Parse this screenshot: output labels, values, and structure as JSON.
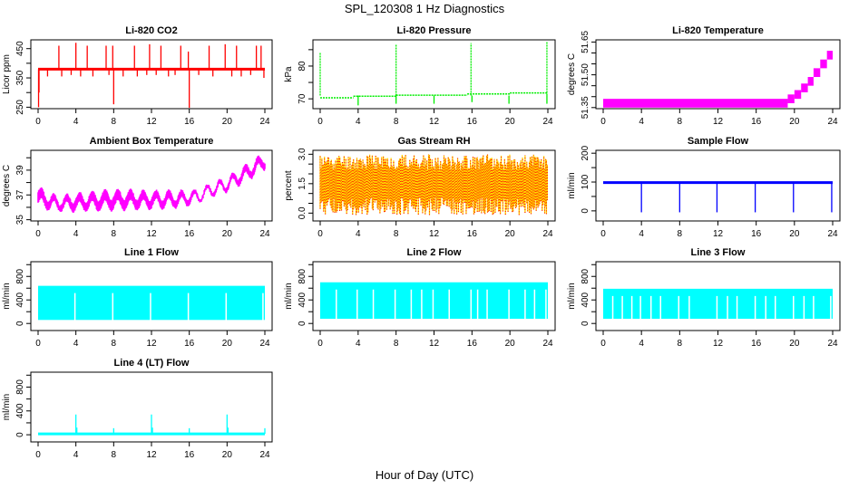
{
  "title": "SPL_120308  1 Hz Diagnostics",
  "xlabel": "Hour of Day (UTC)",
  "chart_data": [
    {
      "id": "co2",
      "type": "line",
      "title": "Li-820 CO2",
      "ylabel": "Licor ppm",
      "color": "#ff0000",
      "xlim": [
        0,
        24
      ],
      "ylim": [
        245,
        480
      ],
      "xticks": [
        0,
        4,
        8,
        12,
        16,
        20,
        24
      ],
      "yticks": [
        250,
        300,
        350,
        400,
        450
      ],
      "ytick_labels": [
        "250",
        "",
        "350",
        "",
        "450"
      ],
      "baseline": [
        [
          0,
          380
        ],
        [
          24,
          380
        ]
      ],
      "spikes": [
        [
          0.05,
          250
        ],
        [
          0.1,
          300
        ],
        [
          2.2,
          460
        ],
        [
          4.0,
          470
        ],
        [
          5.2,
          460
        ],
        [
          7.2,
          460
        ],
        [
          7.9,
          460
        ],
        [
          8.0,
          260
        ],
        [
          10.2,
          460
        ],
        [
          11.8,
          465
        ],
        [
          13.0,
          460
        ],
        [
          15.1,
          460
        ],
        [
          15.9,
          440
        ],
        [
          16.0,
          248
        ],
        [
          18.1,
          460
        ],
        [
          19.8,
          465
        ],
        [
          21.0,
          460
        ],
        [
          23.1,
          460
        ],
        [
          23.6,
          460
        ],
        [
          23.9,
          350
        ]
      ],
      "dips": [
        [
          1.0,
          355
        ],
        [
          2.5,
          355
        ],
        [
          3.5,
          360
        ],
        [
          4.5,
          355
        ],
        [
          5.8,
          355
        ],
        [
          7.5,
          360
        ],
        [
          9.0,
          355
        ],
        [
          10.5,
          355
        ],
        [
          11.5,
          360
        ],
        [
          12.5,
          360
        ],
        [
          13.8,
          355
        ],
        [
          14.5,
          360
        ],
        [
          17.0,
          360
        ],
        [
          18.5,
          355
        ],
        [
          20.5,
          355
        ],
        [
          21.5,
          355
        ],
        [
          22.5,
          360
        ]
      ]
    },
    {
      "id": "pressure",
      "type": "line",
      "title": "Li-820 Pressure",
      "ylabel": "kPa",
      "color": "#00ee00",
      "xlim": [
        0,
        24
      ],
      "ylim": [
        67,
        88
      ],
      "xticks": [
        0,
        4,
        8,
        12,
        16,
        20,
        24
      ],
      "yticks": [
        70,
        75,
        80,
        85
      ],
      "ytick_labels": [
        "70",
        "",
        "80",
        ""
      ],
      "segments": [
        [
          [
            0,
            70.3
          ],
          [
            3.5,
            70.3
          ]
        ],
        [
          [
            3.5,
            70.8
          ],
          [
            8,
            70.8
          ]
        ],
        [
          [
            8,
            71.1
          ],
          [
            15.5,
            71.1
          ]
        ],
        [
          [
            15.5,
            71.5
          ],
          [
            20,
            71.5
          ]
        ],
        [
          [
            20,
            71.8
          ],
          [
            24,
            71.8
          ]
        ]
      ],
      "spikes": [
        [
          0.0,
          84
        ],
        [
          8.0,
          86.5
        ],
        [
          15.9,
          87
        ],
        [
          23.9,
          87.5
        ]
      ],
      "dips": [
        [
          4.0,
          68
        ],
        [
          8.0,
          68.5
        ],
        [
          12.0,
          68.5
        ],
        [
          16.0,
          69
        ],
        [
          19.9,
          68.5
        ],
        [
          23.9,
          68.5
        ]
      ]
    },
    {
      "id": "licor-temp",
      "type": "area",
      "title": "Li-820 Temperature",
      "ylabel": "degrees C",
      "color": "#ff00ff",
      "xlim": [
        0,
        24
      ],
      "ylim": [
        51.345,
        51.66
      ],
      "xticks": [
        0,
        4,
        8,
        12,
        16,
        20,
        24
      ],
      "yticks": [
        51.35,
        51.4,
        51.45,
        51.5,
        51.55,
        51.6,
        51.65
      ],
      "ytick_labels": [
        "51.35",
        "",
        "",
        "51.50",
        "",
        "",
        "51.65"
      ],
      "bands": [
        [
          0,
          19.3,
          51.35,
          51.39
        ],
        [
          19.3,
          20,
          51.37,
          51.41
        ],
        [
          20,
          20.7,
          51.39,
          51.43
        ],
        [
          20.7,
          21.4,
          51.42,
          51.46
        ],
        [
          21.4,
          22,
          51.45,
          51.49
        ],
        [
          22,
          22.7,
          51.49,
          51.53
        ],
        [
          22.7,
          23.4,
          51.53,
          51.57
        ],
        [
          23.4,
          24,
          51.57,
          51.61
        ]
      ]
    },
    {
      "id": "ambient-temp",
      "type": "line",
      "title": "Ambient Box Temperature",
      "ylabel": "degrees C",
      "color": "#ff00ff",
      "xlim": [
        0,
        24
      ],
      "ylim": [
        34.9,
        40.6
      ],
      "xticks": [
        0,
        4,
        8,
        12,
        16,
        20,
        24
      ],
      "yticks": [
        35,
        36,
        37,
        38,
        39,
        40
      ],
      "ytick_labels": [
        "35",
        "",
        "37",
        "",
        "39",
        ""
      ],
      "x": [
        0,
        2,
        4,
        8,
        12,
        15,
        17,
        18,
        20,
        22,
        24
      ],
      "low": [
        35.9,
        35.6,
        35.6,
        35.7,
        35.8,
        35.9,
        36.3,
        36.7,
        37.2,
        38.0,
        39.0
      ],
      "high": [
        37.7,
        37.0,
        37.2,
        37.5,
        37.4,
        37.4,
        37.5,
        37.9,
        38.5,
        39.5,
        40.5
      ]
    },
    {
      "id": "rh",
      "type": "area",
      "title": "Gas Stream RH",
      "ylabel": "percent",
      "color": "#ffd700",
      "color2": "#ff0000",
      "xlim": [
        0,
        24
      ],
      "ylim": [
        -0.4,
        3.2
      ],
      "xticks": [
        0,
        4,
        8,
        12,
        16,
        20,
        24
      ],
      "yticks": [
        0.0,
        0.5,
        1.0,
        1.5,
        2.0,
        2.5,
        3.0
      ],
      "ytick_labels": [
        "0.0",
        "",
        "",
        "1.5",
        "",
        "",
        "3.0"
      ],
      "core": [
        0.8,
        2.2
      ],
      "extremes": [
        -0.2,
        3.05
      ]
    },
    {
      "id": "sample-flow",
      "type": "line",
      "title": "Sample Flow",
      "ylabel": "ml/min",
      "color": "#0000ff",
      "xlim": [
        0,
        24
      ],
      "ylim": [
        -35,
        210
      ],
      "xticks": [
        0,
        4,
        8,
        12,
        16,
        20,
        24
      ],
      "yticks": [
        0,
        50,
        100,
        150,
        200
      ],
      "ytick_labels": [
        "0",
        "",
        "100",
        "",
        "200"
      ],
      "baseline": [
        [
          0,
          98
        ],
        [
          24,
          98
        ]
      ],
      "dips": [
        [
          4.0,
          -5
        ],
        [
          8.0,
          -5
        ],
        [
          11.9,
          -5
        ],
        [
          15.9,
          -5
        ],
        [
          19.9,
          -5
        ],
        [
          23.9,
          -5
        ]
      ]
    },
    {
      "id": "line1",
      "type": "area",
      "title": "Line 1 Flow",
      "ylabel": "ml/min",
      "color": "#00ffff",
      "xlim": [
        0,
        24
      ],
      "ylim": [
        -120,
        1050
      ],
      "xticks": [
        0,
        4,
        8,
        12,
        16,
        20,
        24
      ],
      "yticks": [
        0,
        200,
        400,
        600,
        800,
        1000
      ],
      "ytick_labels": [
        "0",
        "",
        "400",
        "",
        "800",
        ""
      ],
      "range": [
        60,
        640
      ],
      "gaps": [
        3.9,
        7.9,
        11.9,
        15.9,
        19.9,
        23.8
      ]
    },
    {
      "id": "line2",
      "type": "area",
      "title": "Line 2 Flow",
      "ylabel": "ml/min",
      "color": "#00ffff",
      "xlim": [
        0,
        24
      ],
      "ylim": [
        -120,
        1050
      ],
      "xticks": [
        0,
        4,
        8,
        12,
        16,
        20,
        24
      ],
      "yticks": [
        0,
        200,
        400,
        600,
        800,
        1000
      ],
      "ytick_labels": [
        "0",
        "",
        "400",
        "",
        "800",
        ""
      ],
      "range": [
        80,
        700
      ],
      "gaps": [
        1.7,
        3.9,
        5.6,
        7.9,
        9.6,
        10.7,
        11.9,
        13.6,
        15.9,
        16.6,
        17.6,
        19.9,
        21.6,
        22.6,
        23.8
      ]
    },
    {
      "id": "line3",
      "type": "area",
      "title": "Line 3 Flow",
      "ylabel": "ml/min",
      "color": "#00ffff",
      "xlim": [
        0,
        24
      ],
      "ylim": [
        -120,
        1050
      ],
      "xticks": [
        0,
        4,
        8,
        12,
        16,
        20,
        24
      ],
      "yticks": [
        0,
        200,
        400,
        600,
        800,
        1000
      ],
      "ytick_labels": [
        "0",
        "",
        "400",
        "",
        "800",
        ""
      ],
      "range": [
        80,
        590
      ],
      "gaps": [
        1.0,
        2.0,
        3.0,
        3.9,
        5.0,
        6.0,
        7.9,
        9.0,
        11.9,
        13.0,
        14.0,
        15.9,
        17.0,
        18.0,
        19.9,
        21.0,
        22.0,
        23.8
      ]
    },
    {
      "id": "line4",
      "type": "line",
      "title": "Line 4 (LT) Flow",
      "ylabel": "ml/min",
      "color": "#00ffff",
      "xlim": [
        0,
        24
      ],
      "ylim": [
        -120,
        1050
      ],
      "xticks": [
        0,
        4,
        8,
        12,
        16,
        20,
        24
      ],
      "yticks": [
        0,
        200,
        400,
        600,
        800,
        1000
      ],
      "ytick_labels": [
        "0",
        "",
        "400",
        "",
        "800",
        ""
      ],
      "baseline": [
        [
          0,
          15
        ],
        [
          24,
          15
        ]
      ],
      "spikes": [
        [
          4.0,
          340
        ],
        [
          4.1,
          120
        ],
        [
          8.0,
          110
        ],
        [
          12.0,
          340
        ],
        [
          12.1,
          120
        ],
        [
          16.0,
          110
        ],
        [
          20.0,
          340
        ],
        [
          20.1,
          120
        ],
        [
          24.0,
          110
        ]
      ]
    }
  ]
}
